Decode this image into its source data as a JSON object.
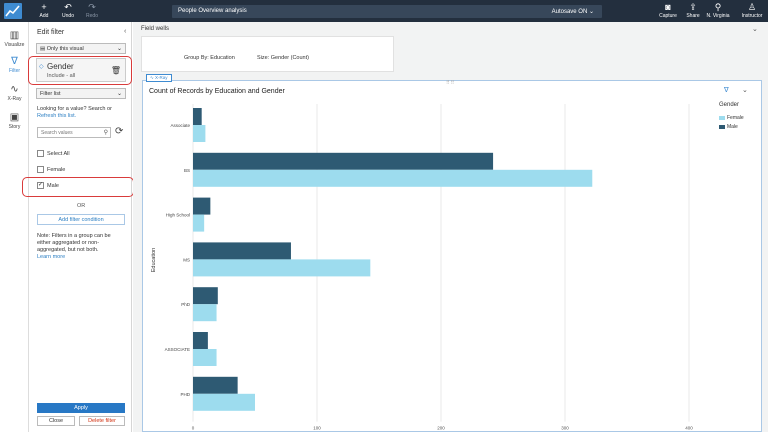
{
  "toolbar": {
    "add": "Add",
    "undo": "Undo",
    "redo": "Redo",
    "analysis_title": "People Overview analysis",
    "autosave": "Autosave ON",
    "capture": "Capture",
    "share": "Share",
    "region": "N. Virginia",
    "user": "Instructor"
  },
  "rail": {
    "visualize": "Visualize",
    "filter": "Filter",
    "xray": "X-Ray",
    "story": "Story"
  },
  "filter_panel": {
    "title": "Edit filter",
    "scope": "Only this visual",
    "field_name": "Gender",
    "field_sub": "Include - all",
    "filter_type": "Filter list",
    "hint_line1": "Looking for a value? Search or",
    "hint_link": "Refresh this list.",
    "search_placeholder": "Search values",
    "select_all": "Select All",
    "values": [
      "Female",
      "Male"
    ],
    "or": "OR",
    "add_condition": "Add filter condition",
    "note_lines": [
      "Note: Filters in a group can be",
      "either aggregated or non-",
      "aggregated, but not both."
    ],
    "learn_more": "Learn more",
    "apply": "Apply",
    "close": "Close",
    "delete": "Delete filter"
  },
  "field_wells": {
    "label": "Field wells",
    "group_by": "Group By: Education",
    "size": "Size: Gender (Count)"
  },
  "visual": {
    "tag": "X-Ray",
    "title": "Count of Records by Education and Gender"
  },
  "chart_data": {
    "type": "bar",
    "orientation": "horizontal",
    "ylabel": "Education",
    "xlabel": "",
    "categories": [
      "Associate",
      "BS",
      "High School",
      "MS",
      "PhD",
      "ASSOCIATE",
      "PHD"
    ],
    "series": [
      {
        "name": "Male",
        "color": "#2e5a73",
        "values": [
          7,
          242,
          14,
          79,
          20,
          12,
          36
        ]
      },
      {
        "name": "Female",
        "color": "#9ddcee",
        "values": [
          10,
          322,
          9,
          143,
          19,
          19,
          50
        ]
      }
    ],
    "xlim": [
      0,
      400
    ],
    "xticks": [
      0,
      100,
      200,
      300,
      400
    ],
    "grid": true,
    "legend_title": "Gender",
    "legend_entries": [
      "Female",
      "Male"
    ],
    "legend_position": "right"
  }
}
